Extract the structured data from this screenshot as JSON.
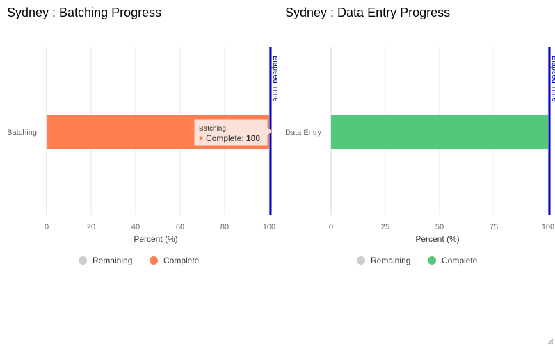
{
  "chart_data": [
    {
      "type": "bar",
      "orientation": "horizontal",
      "stacked": true,
      "title": "Sydney : Batching Progress",
      "categories": [
        "Batching"
      ],
      "series": [
        {
          "name": "Remaining",
          "values": [
            0
          ],
          "color": "#cccccc"
        },
        {
          "name": "Complete",
          "values": [
            100
          ],
          "color": "#ff7f50"
        }
      ],
      "xlabel": "Percent (%)",
      "xlim": [
        0,
        100
      ],
      "ticks": [
        "0",
        "20",
        "40",
        "60",
        "80",
        "100"
      ],
      "tick_values": [
        0,
        20,
        40,
        60,
        80,
        100
      ],
      "grid": true,
      "plot_line": {
        "value": 100,
        "label": "Elapsed Time",
        "color": "#0000cc"
      },
      "legend": "bottom-center",
      "tooltip": {
        "category": "Batching",
        "series": "Complete",
        "label": "Complete: ",
        "value": "100"
      }
    },
    {
      "type": "bar",
      "orientation": "horizontal",
      "stacked": true,
      "title": "Sydney : Data Entry Progress",
      "categories": [
        "Data Entry"
      ],
      "series": [
        {
          "name": "Remaining",
          "values": [
            0
          ],
          "color": "#cccccc"
        },
        {
          "name": "Complete",
          "values": [
            100
          ],
          "color": "#52c878"
        }
      ],
      "xlabel": "Percent (%)",
      "xlim": [
        0,
        100
      ],
      "ticks": [
        "0",
        "25",
        "50",
        "75",
        "100"
      ],
      "tick_values": [
        0,
        25,
        50,
        75,
        100
      ],
      "grid": true,
      "plot_line": {
        "value": 100,
        "label": "Elapsed Time",
        "color": "#0000cc"
      },
      "legend": "bottom-center"
    }
  ]
}
